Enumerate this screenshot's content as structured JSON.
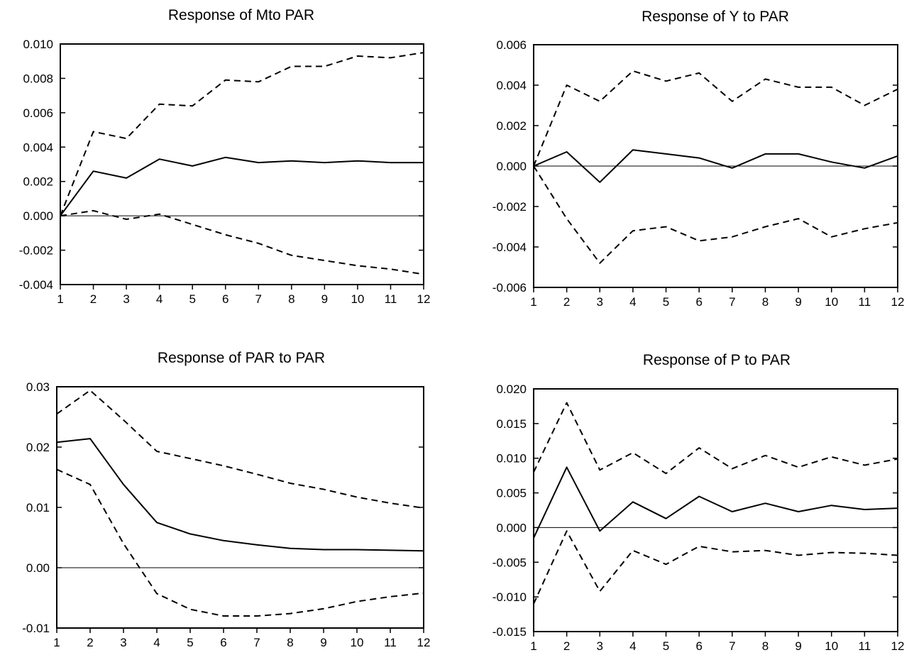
{
  "chart_data": [
    {
      "type": "line",
      "title": "Response of Mto PAR",
      "x": [
        1,
        2,
        3,
        4,
        5,
        6,
        7,
        8,
        9,
        10,
        11,
        12
      ],
      "ylim": [
        -0.004,
        0.01
      ],
      "yticks": [
        "0.010",
        "0.008",
        "0.006",
        "0.004",
        "0.002",
        "0.000",
        "-0.002",
        "-0.004"
      ],
      "xticks": [
        "1",
        "2",
        "3",
        "4",
        "5",
        "6",
        "7",
        "8",
        "9",
        "10",
        "11",
        "12"
      ],
      "grid": false,
      "zero_line": true,
      "series": [
        {
          "style": "solid",
          "values": [
            0.0,
            0.0026,
            0.0022,
            0.0033,
            0.0029,
            0.0034,
            0.0031,
            0.0032,
            0.0031,
            0.0032,
            0.0031,
            0.0031
          ]
        },
        {
          "style": "dashed",
          "values": [
            0.0,
            0.0049,
            0.0045,
            0.0065,
            0.0064,
            0.0079,
            0.0078,
            0.0087,
            0.0087,
            0.0093,
            0.0092,
            0.0095
          ]
        },
        {
          "style": "dashed",
          "values": [
            0.0,
            0.0003,
            -0.0002,
            0.0001,
            -0.0005,
            -0.0011,
            -0.0016,
            -0.0023,
            -0.0026,
            -0.0029,
            -0.0031,
            -0.0034
          ]
        }
      ]
    },
    {
      "type": "line",
      "title": "Response of Y to PAR",
      "x": [
        1,
        2,
        3,
        4,
        5,
        6,
        7,
        8,
        9,
        10,
        11,
        12
      ],
      "ylim": [
        -0.006,
        0.006
      ],
      "yticks": [
        "0.006",
        "0.004",
        "0.002",
        "0.000",
        "-0.002",
        "-0.004",
        "-0.006"
      ],
      "xticks": [
        "1",
        "2",
        "3",
        "4",
        "5",
        "6",
        "7",
        "8",
        "9",
        "10",
        "11",
        "12"
      ],
      "grid": false,
      "zero_line": true,
      "series": [
        {
          "style": "solid",
          "values": [
            0.0,
            0.0007,
            -0.0008,
            0.0008,
            0.0006,
            0.0004,
            -0.0001,
            0.0006,
            0.0006,
            0.0002,
            -0.0001,
            0.0005
          ]
        },
        {
          "style": "dashed",
          "values": [
            0.0,
            0.004,
            0.0032,
            0.0047,
            0.0042,
            0.0046,
            0.0032,
            0.0043,
            0.0039,
            0.0039,
            0.003,
            0.0038
          ]
        },
        {
          "style": "dashed",
          "values": [
            0.0,
            -0.0026,
            -0.0048,
            -0.0032,
            -0.003,
            -0.0037,
            -0.0035,
            -0.003,
            -0.0026,
            -0.0035,
            -0.0031,
            -0.0028
          ]
        }
      ]
    },
    {
      "type": "line",
      "title": "Response of PAR to PAR",
      "x": [
        1,
        2,
        3,
        4,
        5,
        6,
        7,
        8,
        9,
        10,
        11,
        12
      ],
      "ylim": [
        -0.01,
        0.03
      ],
      "yticks": [
        "0.03",
        "0.02",
        "0.01",
        "0.00",
        "-0.01"
      ],
      "xticks": [
        "1",
        "2",
        "3",
        "4",
        "5",
        "6",
        "7",
        "8",
        "9",
        "10",
        "11",
        "12"
      ],
      "grid": false,
      "zero_line": true,
      "series": [
        {
          "style": "solid",
          "values": [
            0.0208,
            0.0214,
            0.0138,
            0.0075,
            0.0056,
            0.0045,
            0.0038,
            0.0032,
            0.003,
            0.003,
            0.0029,
            0.0028
          ]
        },
        {
          "style": "dashed",
          "values": [
            0.0255,
            0.0294,
            0.0245,
            0.0193,
            0.0181,
            0.0169,
            0.0155,
            0.014,
            0.013,
            0.0117,
            0.0107,
            0.0099
          ]
        },
        {
          "style": "dashed",
          "values": [
            0.0163,
            0.0138,
            0.004,
            -0.0043,
            -0.0069,
            -0.008,
            -0.008,
            -0.0076,
            -0.0068,
            -0.0056,
            -0.0048,
            -0.0042
          ]
        }
      ]
    },
    {
      "type": "line",
      "title": "Response of P to PAR",
      "x": [
        1,
        2,
        3,
        4,
        5,
        6,
        7,
        8,
        9,
        10,
        11,
        12
      ],
      "ylim": [
        -0.015,
        0.02
      ],
      "yticks": [
        "0.020",
        "0.015",
        "0.010",
        "0.005",
        "0.000",
        "-0.005",
        "-0.010",
        "-0.015"
      ],
      "xticks": [
        "1",
        "2",
        "3",
        "4",
        "5",
        "6",
        "7",
        "8",
        "9",
        "10",
        "11",
        "12"
      ],
      "grid": false,
      "zero_line": true,
      "series": [
        {
          "style": "solid",
          "values": [
            -0.0015,
            0.0087,
            -0.0005,
            0.0037,
            0.0013,
            0.0045,
            0.0023,
            0.0035,
            0.0023,
            0.0032,
            0.0026,
            0.0028
          ]
        },
        {
          "style": "dashed",
          "values": [
            0.008,
            0.018,
            0.0083,
            0.0108,
            0.0078,
            0.0115,
            0.0085,
            0.0104,
            0.0087,
            0.0102,
            0.009,
            0.0099
          ]
        },
        {
          "style": "dashed",
          "values": [
            -0.011,
            -0.0005,
            -0.0092,
            -0.0033,
            -0.0053,
            -0.0027,
            -0.0035,
            -0.0033,
            -0.004,
            -0.0036,
            -0.0037,
            -0.004
          ]
        }
      ]
    }
  ]
}
